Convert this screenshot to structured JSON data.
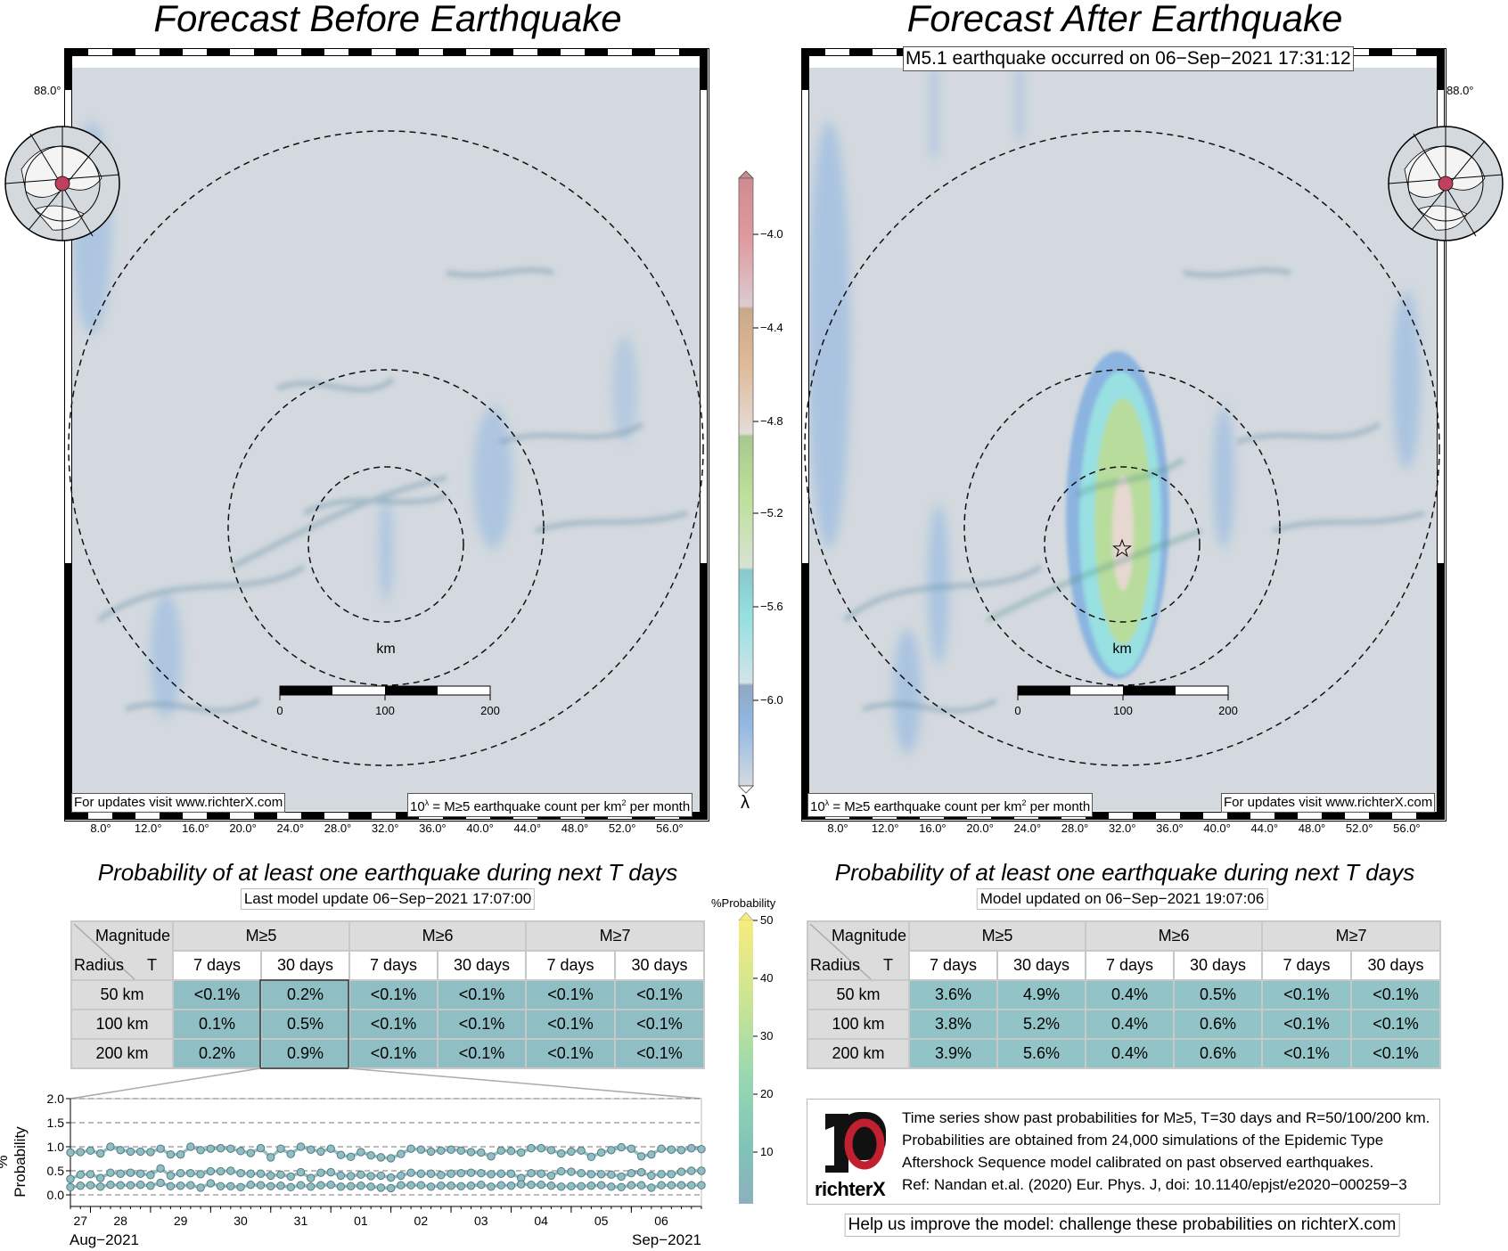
{
  "left_panel": {
    "title": "Forecast Before Earthquake",
    "latitude_label": "88.0°",
    "updates_note": "For updates visit www.richterX.com",
    "unit_note": {
      "base": "10",
      "exp": "λ",
      "text": " = M≥5 earthquake count per km",
      "exp2": "2",
      "tail": " per month"
    },
    "scale": {
      "unit": "km",
      "labels": [
        "0",
        "100",
        "200"
      ]
    },
    "longitude_labels": [
      "8.0°",
      "12.0°",
      "16.0°",
      "20.0°",
      "24.0°",
      "28.0°",
      "32.0°",
      "36.0°",
      "40.0°",
      "44.0°",
      "48.0°",
      "52.0°",
      "56.0°"
    ]
  },
  "right_panel": {
    "title": "Forecast After Earthquake",
    "event_label": "M5.1 earthquake occurred on 06−Sep−2021 17:31:12",
    "latitude_label": "88.0°",
    "updates_note": "For updates visit www.richterX.com",
    "unit_note": {
      "base": "10",
      "exp": "λ",
      "text": " = M≥5 earthquake count per km",
      "exp2": "2",
      "tail": " per month"
    },
    "scale": {
      "unit": "km",
      "labels": [
        "0",
        "100",
        "200"
      ]
    },
    "epicenter_icon": "star-icon",
    "longitude_labels": [
      "8.0°",
      "12.0°",
      "16.0°",
      "20.0°",
      "24.0°",
      "28.0°",
      "32.0°",
      "36.0°",
      "40.0°",
      "44.0°",
      "48.0°",
      "52.0°",
      "56.0°"
    ]
  },
  "rate_colorbar": {
    "label": "λ",
    "ticks": [
      "−4.0",
      "−4.4",
      "−4.8",
      "−5.2",
      "−5.6",
      "−6.0"
    ],
    "colors": {
      "high": "#d4888c",
      "mid_high": "#d8b08c",
      "mid": "#b4d890",
      "mid_low": "#8cd8dc",
      "low": "#90b4e0"
    }
  },
  "prob_colorbar": {
    "label": "%Probability",
    "ticks": [
      "50",
      "40",
      "30",
      "20",
      "10"
    ],
    "colors": {
      "top": "#f6ec7c",
      "mid": "#a8dca4",
      "bottom": "#88b4bc"
    }
  },
  "left_table": {
    "heading": "Probability of at least one earthquake during next T days",
    "update_note": "Last model update 06−Sep−2021 17:07:00",
    "corner_top": "Magnitude",
    "corner_bottom_left": "Radius",
    "corner_bottom_right": "T",
    "magnitudes": [
      "M≥5",
      "M≥6",
      "M≥7"
    ],
    "periods": [
      "7 days",
      "30 days",
      "7 days",
      "30 days",
      "7 days",
      "30 days"
    ],
    "rows": [
      {
        "radius": "50 km",
        "values": [
          "<0.1%",
          "0.2%",
          "<0.1%",
          "<0.1%",
          "<0.1%",
          "<0.1%"
        ]
      },
      {
        "radius": "100 km",
        "values": [
          "0.1%",
          "0.5%",
          "<0.1%",
          "<0.1%",
          "<0.1%",
          "<0.1%"
        ]
      },
      {
        "radius": "200 km",
        "values": [
          "0.2%",
          "0.9%",
          "<0.1%",
          "<0.1%",
          "<0.1%",
          "<0.1%"
        ]
      }
    ],
    "cell_color": "#8fbfc4"
  },
  "right_table": {
    "heading": "Probability of at least one earthquake during next T days",
    "update_note": "Model updated on 06−Sep−2021 19:07:06",
    "corner_top": "Magnitude",
    "corner_bottom_left": "Radius",
    "corner_bottom_right": "T",
    "magnitudes": [
      "M≥5",
      "M≥6",
      "M≥7"
    ],
    "periods": [
      "7 days",
      "30 days",
      "7 days",
      "30 days",
      "7 days",
      "30 days"
    ],
    "rows": [
      {
        "radius": "50 km",
        "values": [
          "3.6%",
          "4.9%",
          "0.4%",
          "0.5%",
          "<0.1%",
          "<0.1%"
        ]
      },
      {
        "radius": "100 km",
        "values": [
          "3.8%",
          "5.2%",
          "0.4%",
          "0.6%",
          "<0.1%",
          "<0.1%"
        ]
      },
      {
        "radius": "200 km",
        "values": [
          "3.9%",
          "5.6%",
          "0.4%",
          "0.6%",
          "<0.1%",
          "<0.1%"
        ]
      }
    ],
    "cell_color": "#92c4c7"
  },
  "info": {
    "logo_text": "richterX",
    "lines": [
      "Time series show past probabilities for M≥5, T=30 days and R=50/100/200 km.",
      "Probabilities are obtained from 24,000 simulations of the Epidemic Type",
      "Aftershock Sequence model calibrated on past observed earthquakes.",
      "Ref: Nandan et.al. (2020) Eur. Phys. J, doi: 10.1140/epjst/e2020−000259−3"
    ],
    "help": "Help us improve the model: challenge these probabilities on richterX.com"
  },
  "chart_data": {
    "type": "line",
    "ylabel": "% Probability",
    "ylim": [
      0,
      2.0
    ],
    "yticks": [
      "0.0",
      "0.5",
      "1.0",
      "1.5",
      "2.0"
    ],
    "grid": "dashed horizontal",
    "x_start": "2021-08-26 16:00",
    "x_interval_hours": 4,
    "xtick_labels": [
      "27",
      "28",
      "29",
      "30",
      "31",
      "01",
      "02",
      "03",
      "04",
      "05",
      "06"
    ],
    "x_month_labels": [
      "Aug−2021",
      "Sep−2021"
    ],
    "color": "#8fbfc4",
    "series": [
      {
        "values": [
          0.88,
          0.89,
          0.92,
          0.86,
          1.0,
          0.93,
          0.9,
          0.9,
          0.89,
          0.96,
          0.84,
          0.84,
          1.0,
          0.93,
          0.96,
          0.97,
          0.96,
          0.91,
          0.87,
          0.97,
          0.78,
          0.96,
          0.85,
          1.0,
          0.94,
          0.9,
          0.96,
          0.83,
          0.79,
          0.89,
          0.82,
          0.78,
          0.76,
          0.85,
          0.96,
          0.94,
          0.9,
          0.92,
          0.94,
          0.92,
          0.89,
          0.88,
          0.8,
          0.92,
          0.91,
          0.88,
          0.97,
          0.97,
          0.93,
          0.86,
          0.9,
          0.92,
          0.79,
          0.88,
          0.93,
          0.99,
          0.96,
          0.8,
          0.84,
          0.96,
          0.94,
          0.93,
          0.97,
          0.95
        ]
      },
      {
        "values": [
          0.33,
          0.42,
          0.43,
          0.35,
          0.46,
          0.44,
          0.46,
          0.44,
          0.41,
          0.55,
          0.4,
          0.45,
          0.45,
          0.43,
          0.49,
          0.49,
          0.5,
          0.45,
          0.44,
          0.44,
          0.4,
          0.42,
          0.38,
          0.47,
          0.35,
          0.46,
          0.47,
          0.4,
          0.39,
          0.42,
          0.39,
          0.4,
          0.36,
          0.4,
          0.46,
          0.44,
          0.44,
          0.41,
          0.44,
          0.45,
          0.46,
          0.45,
          0.43,
          0.44,
          0.44,
          0.35,
          0.45,
          0.44,
          0.4,
          0.49,
          0.48,
          0.45,
          0.43,
          0.43,
          0.42,
          0.38,
          0.45,
          0.47,
          0.4,
          0.43,
          0.43,
          0.48,
          0.5,
          0.5
        ]
      },
      {
        "values": [
          0.16,
          0.19,
          0.2,
          0.17,
          0.21,
          0.2,
          0.2,
          0.21,
          0.19,
          0.25,
          0.18,
          0.19,
          0.2,
          0.15,
          0.24,
          0.18,
          0.18,
          0.16,
          0.21,
          0.2,
          0.18,
          0.19,
          0.16,
          0.2,
          0.17,
          0.2,
          0.21,
          0.17,
          0.18,
          0.19,
          0.17,
          0.15,
          0.14,
          0.2,
          0.2,
          0.2,
          0.17,
          0.19,
          0.19,
          0.18,
          0.19,
          0.21,
          0.17,
          0.2,
          0.19,
          0.22,
          0.21,
          0.21,
          0.19,
          0.17,
          0.18,
          0.18,
          0.19,
          0.2,
          0.17,
          0.16,
          0.2,
          0.2,
          0.15,
          0.2,
          0.2,
          0.2,
          0.2,
          0.2
        ]
      }
    ]
  }
}
